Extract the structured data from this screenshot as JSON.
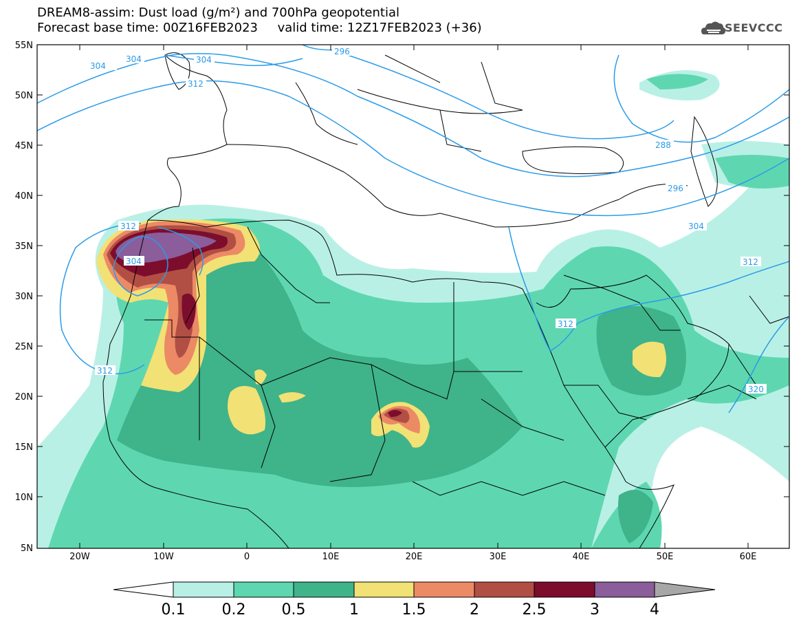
{
  "header": {
    "title_line1": "DREAM8-assim: Dust load (g/m²) and 700hPa geopotential",
    "title_line2": "Forecast base time: 00Z16FEB2023     valid time: 12Z17FEB2023 (+36)",
    "logo_text": "SEEVCCC"
  },
  "axes": {
    "lat_labels": [
      "55N",
      "50N",
      "45N",
      "40N",
      "35N",
      "30N",
      "25N",
      "20N",
      "15N",
      "10N",
      "5N"
    ],
    "lon_labels": [
      "20W",
      "10W",
      "0",
      "10E",
      "20E",
      "30E",
      "40E",
      "50E",
      "60E"
    ]
  },
  "colorbar": {
    "tick_labels": [
      "0.1",
      "0.2",
      "0.5",
      "1",
      "1.5",
      "2",
      "2.5",
      "3",
      "4"
    ],
    "colors": [
      "#b9f0e6",
      "#5ed7b0",
      "#3fb38a",
      "#f2e174",
      "#ec8a66",
      "#b24f44",
      "#7d0d2c",
      "#8b5d9a",
      "#a7a7a7"
    ]
  },
  "contour_labels": [
    "304",
    "304",
    "304",
    "312",
    "296",
    "312",
    "304",
    "312",
    "288",
    "296",
    "304",
    "312",
    "312",
    "320"
  ]
}
